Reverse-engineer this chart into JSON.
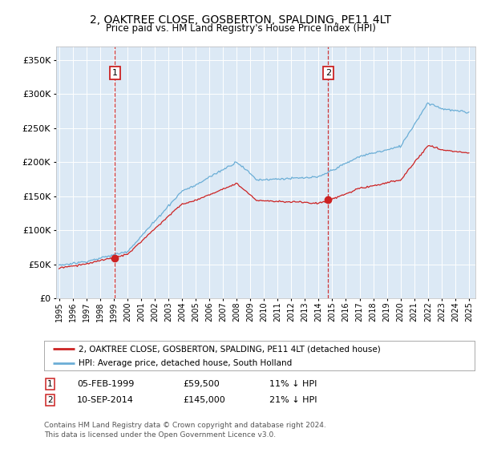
{
  "title": "2, OAKTREE CLOSE, GOSBERTON, SPALDING, PE11 4LT",
  "subtitle": "Price paid vs. HM Land Registry's House Price Index (HPI)",
  "legend_line1": "2, OAKTREE CLOSE, GOSBERTON, SPALDING, PE11 4LT (detached house)",
  "legend_line2": "HPI: Average price, detached house, South Holland",
  "annotation1_date": "05-FEB-1999",
  "annotation1_price": "£59,500",
  "annotation1_hpi": "11% ↓ HPI",
  "annotation1_year": 1999.1,
  "annotation1_price_val": 59500,
  "annotation2_date": "10-SEP-2014",
  "annotation2_price": "£145,000",
  "annotation2_hpi": "21% ↓ HPI",
  "annotation2_year": 2014.7,
  "annotation2_price_val": 145000,
  "footer1": "Contains HM Land Registry data © Crown copyright and database right 2024.",
  "footer2": "This data is licensed under the Open Government Licence v3.0.",
  "hpi_color": "#6baed6",
  "price_color": "#cc2222",
  "annotation_box_color": "#cc2222",
  "background_color": "#dce9f5",
  "ylim": [
    0,
    370000
  ],
  "yticks": [
    0,
    50000,
    100000,
    150000,
    200000,
    250000,
    300000,
    350000
  ],
  "xlim_start": 1994.8,
  "xlim_end": 2025.5,
  "xtick_years": [
    1995,
    1996,
    1997,
    1998,
    1999,
    2000,
    2001,
    2002,
    2003,
    2004,
    2005,
    2006,
    2007,
    2008,
    2009,
    2010,
    2011,
    2012,
    2013,
    2014,
    2015,
    2016,
    2017,
    2018,
    2019,
    2020,
    2021,
    2022,
    2023,
    2024,
    2025
  ]
}
